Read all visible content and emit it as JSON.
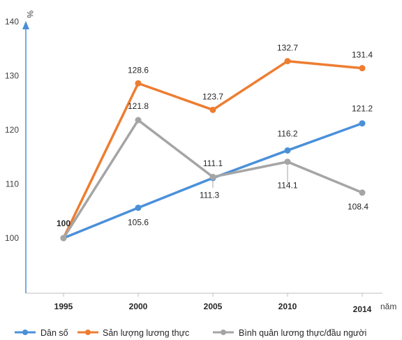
{
  "chart_data": {
    "type": "line",
    "title": "",
    "ylabel": "%",
    "xlabel": "năm",
    "x": [
      "1995",
      "2000",
      "2005",
      "2010",
      "2014"
    ],
    "ylim": [
      90,
      140
    ],
    "yticks": [
      "140",
      "130",
      "120",
      "110",
      "100"
    ],
    "ytick_values": [
      140,
      130,
      120,
      110,
      100
    ],
    "grid": false,
    "legend_position": "bottom",
    "series": [
      {
        "name": "Dân số",
        "color": "#4A90D9",
        "values": [
          100,
          105.6,
          111.1,
          116.2,
          121.2
        ],
        "labels": [
          "",
          "105.6",
          "111.1",
          "116.2",
          "121.2"
        ]
      },
      {
        "name": "Sản lượng lương thực",
        "color": "#ED7D31",
        "values": [
          100,
          128.6,
          123.7,
          132.7,
          131.4
        ],
        "labels": [
          "",
          "128.6",
          "123.7",
          "132.7",
          "131.4"
        ]
      },
      {
        "name": "Bình quân lương thực/đầu người",
        "color": "#A5A5A5",
        "values": [
          100,
          121.8,
          111.3,
          114.1,
          108.4
        ],
        "labels": [
          "100",
          "121.8",
          "111.3",
          "114.1",
          "108.4"
        ]
      }
    ]
  }
}
